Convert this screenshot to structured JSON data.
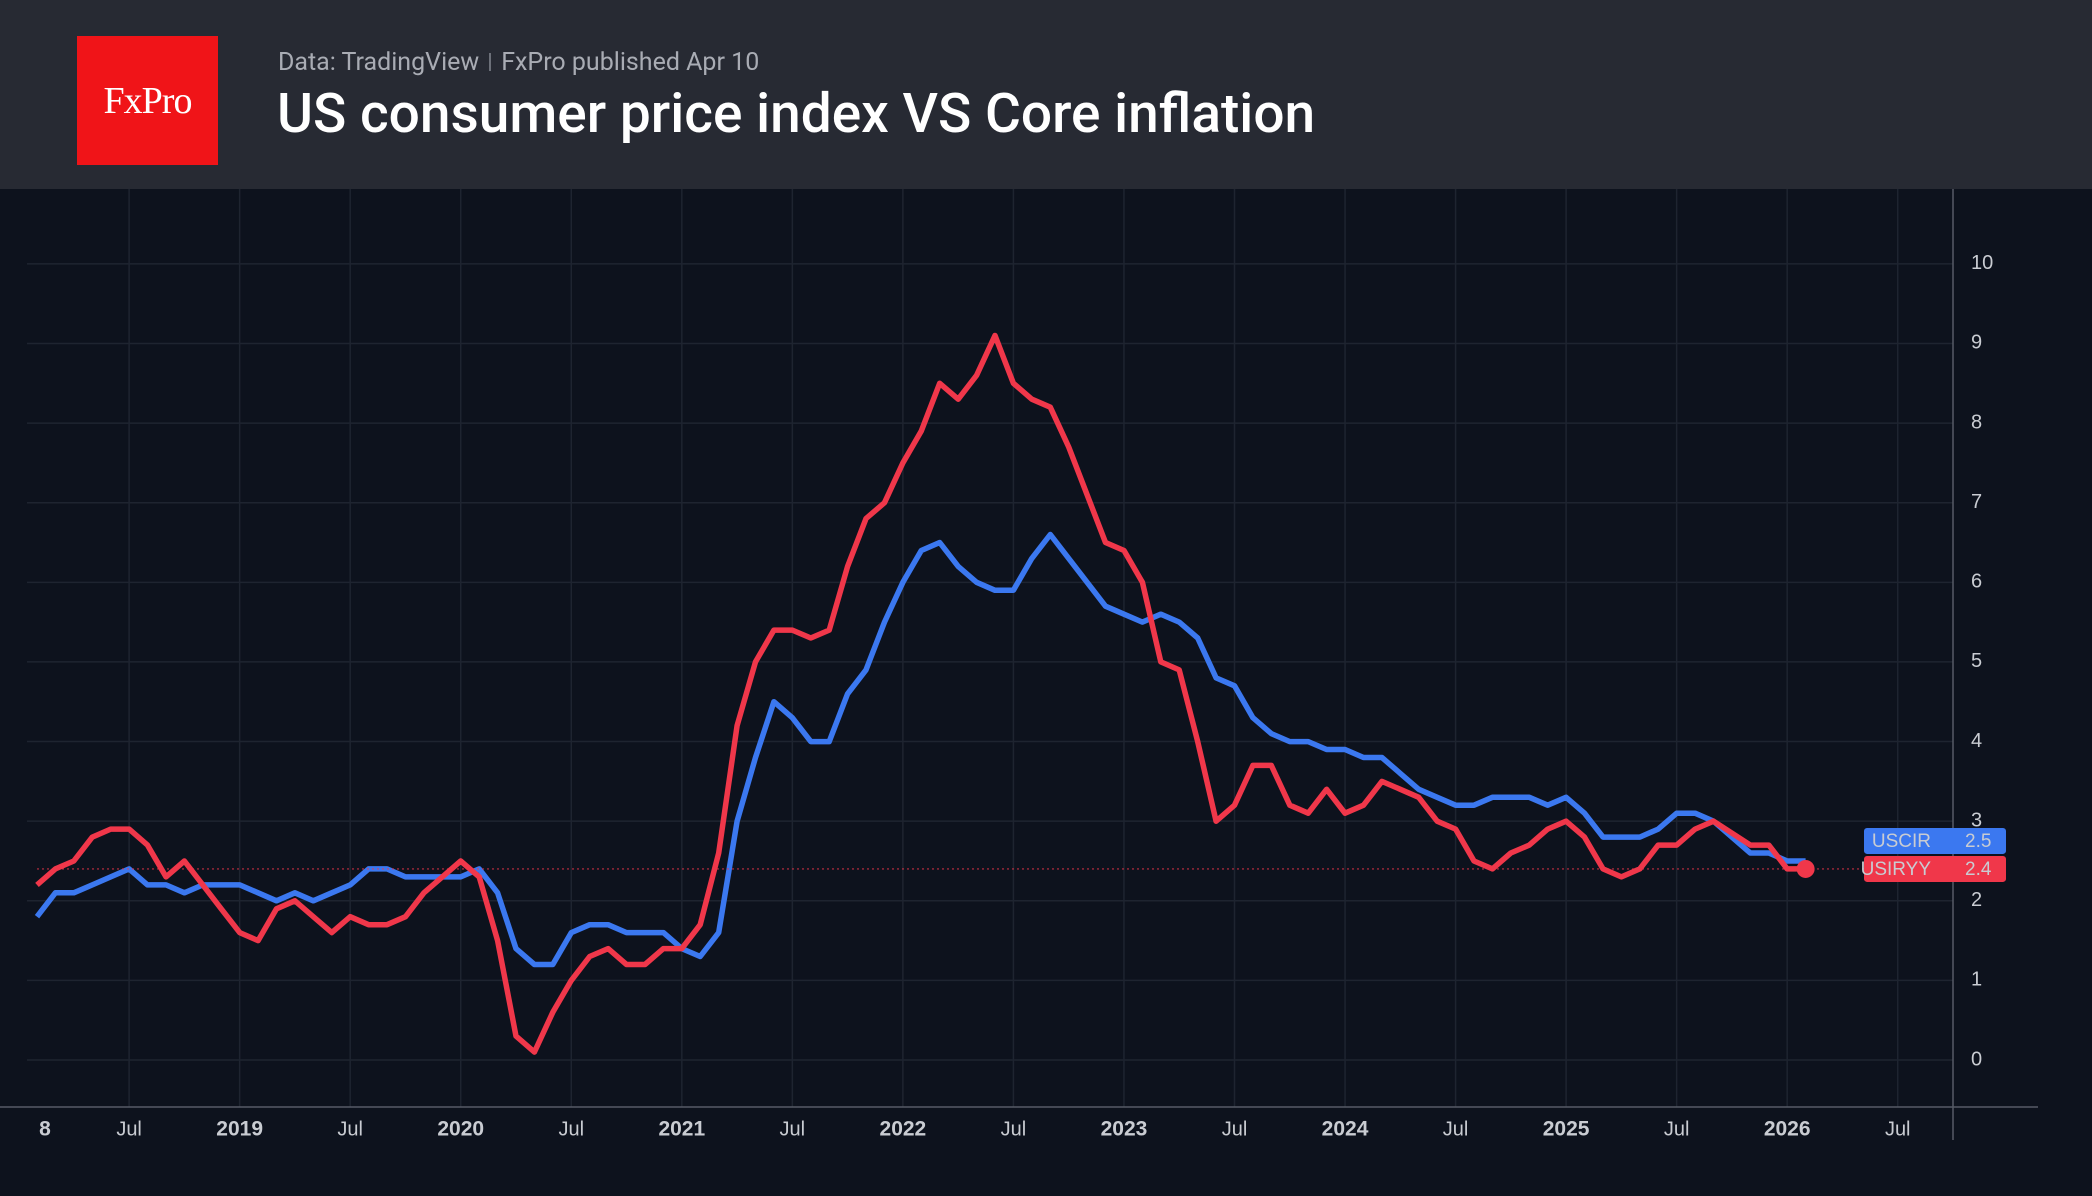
{
  "header": {
    "logo": "FxPro",
    "source": "Data: TradingView",
    "published": "FxPro published Apr 10"
  },
  "chart_data": {
    "type": "line",
    "title": "US consumer price index VS Core inflation",
    "x": [
      "2018-02",
      "2018-03",
      "2018-04",
      "2018-05",
      "2018-06",
      "2018-07",
      "2018-08",
      "2018-09",
      "2018-10",
      "2018-11",
      "2018-12",
      "2019-01",
      "2019-02",
      "2019-03",
      "2019-04",
      "2019-05",
      "2019-06",
      "2019-07",
      "2019-08",
      "2019-09",
      "2019-10",
      "2019-11",
      "2019-12",
      "2020-01",
      "2020-02",
      "2020-03",
      "2020-04",
      "2020-05",
      "2020-06",
      "2020-07",
      "2020-08",
      "2020-09",
      "2020-10",
      "2020-11",
      "2020-12",
      "2021-01",
      "2021-02",
      "2021-03",
      "2021-04",
      "2021-05",
      "2021-06",
      "2021-07",
      "2021-08",
      "2021-09",
      "2021-10",
      "2021-11",
      "2021-12",
      "2022-01",
      "2022-02",
      "2022-03",
      "2022-04",
      "2022-05",
      "2022-06",
      "2022-07",
      "2022-08",
      "2022-09",
      "2022-10",
      "2022-11",
      "2022-12",
      "2023-01",
      "2023-02",
      "2023-03",
      "2023-04",
      "2023-05",
      "2023-06",
      "2023-07",
      "2023-08",
      "2023-09",
      "2023-10",
      "2023-11",
      "2023-12",
      "2024-01",
      "2024-02",
      "2024-03",
      "2024-04",
      "2024-05",
      "2024-06",
      "2024-07",
      "2024-08",
      "2024-09",
      "2024-10",
      "2024-11",
      "2024-12",
      "2025-01",
      "2025-02",
      "2025-03",
      "2025-04",
      "2025-05",
      "2025-06",
      "2025-07",
      "2025-08",
      "2025-09",
      "2025-11",
      "2025-12",
      "2026-01",
      "2026-02"
    ],
    "series": [
      {
        "name": "USCIR",
        "color": "#3b78f0",
        "values": [
          1.8,
          2.1,
          2.1,
          2.2,
          2.3,
          2.4,
          2.2,
          2.2,
          2.1,
          2.2,
          2.2,
          2.2,
          2.1,
          2.0,
          2.1,
          2.0,
          2.1,
          2.2,
          2.4,
          2.4,
          2.3,
          2.3,
          2.3,
          2.3,
          2.4,
          2.1,
          1.4,
          1.2,
          1.2,
          1.6,
          1.7,
          1.7,
          1.6,
          1.6,
          1.6,
          1.4,
          1.3,
          1.6,
          3.0,
          3.8,
          4.5,
          4.3,
          4.0,
          4.0,
          4.6,
          4.9,
          5.5,
          6.0,
          6.4,
          6.5,
          6.2,
          6.0,
          5.9,
          5.9,
          6.3,
          6.6,
          6.3,
          6.0,
          5.7,
          5.6,
          5.5,
          5.6,
          5.5,
          5.3,
          4.8,
          4.7,
          4.3,
          4.1,
          4.0,
          4.0,
          3.9,
          3.9,
          3.8,
          3.8,
          3.6,
          3.4,
          3.3,
          3.2,
          3.2,
          3.3,
          3.3,
          3.3,
          3.2,
          3.3,
          3.1,
          2.8,
          2.8,
          2.8,
          2.9,
          3.1,
          3.1,
          3.0,
          2.6,
          2.6,
          2.5,
          2.5
        ]
      },
      {
        "name": "USIRYY",
        "color": "#f0374a",
        "values": [
          2.2,
          2.4,
          2.5,
          2.8,
          2.9,
          2.9,
          2.7,
          2.3,
          2.5,
          2.2,
          1.9,
          1.6,
          1.5,
          1.9,
          2.0,
          1.8,
          1.6,
          1.8,
          1.7,
          1.7,
          1.8,
          2.1,
          2.3,
          2.5,
          2.3,
          1.5,
          0.3,
          0.1,
          0.6,
          1.0,
          1.3,
          1.4,
          1.2,
          1.2,
          1.4,
          1.4,
          1.7,
          2.6,
          4.2,
          5.0,
          5.4,
          5.4,
          5.3,
          5.4,
          6.2,
          6.8,
          7.0,
          7.5,
          7.9,
          8.5,
          8.3,
          8.6,
          9.1,
          8.5,
          8.3,
          8.2,
          7.7,
          7.1,
          6.5,
          6.4,
          6.0,
          5.0,
          4.9,
          4.0,
          3.0,
          3.2,
          3.7,
          3.7,
          3.2,
          3.1,
          3.4,
          3.1,
          3.2,
          3.5,
          3.4,
          3.3,
          3.0,
          2.9,
          2.5,
          2.4,
          2.6,
          2.7,
          2.9,
          3.0,
          2.8,
          2.4,
          2.3,
          2.4,
          2.7,
          2.7,
          2.9,
          3.0,
          2.7,
          2.7,
          2.4,
          2.4
        ]
      }
    ],
    "xlim": [
      "2018-02",
      "2026-10"
    ],
    "xticks": [
      {
        "value": "2018-01",
        "label": "8"
      },
      {
        "value": "2018-07",
        "label": "Jul"
      },
      {
        "value": "2019-01",
        "label": "2019"
      },
      {
        "value": "2019-07",
        "label": "Jul"
      },
      {
        "value": "2020-01",
        "label": "2020"
      },
      {
        "value": "2020-07",
        "label": "Jul"
      },
      {
        "value": "2021-01",
        "label": "2021"
      },
      {
        "value": "2021-07",
        "label": "Jul"
      },
      {
        "value": "2022-01",
        "label": "2022"
      },
      {
        "value": "2022-07",
        "label": "Jul"
      },
      {
        "value": "2023-01",
        "label": "2023"
      },
      {
        "value": "2023-07",
        "label": "Jul"
      },
      {
        "value": "2024-01",
        "label": "2024"
      },
      {
        "value": "2024-07",
        "label": "Jul"
      },
      {
        "value": "2025-01",
        "label": "2025"
      },
      {
        "value": "2025-07",
        "label": "Jul"
      },
      {
        "value": "2026-01",
        "label": "2026"
      },
      {
        "value": "2026-07",
        "label": "Jul"
      }
    ],
    "ylim": [
      -0.59,
      10.94
    ],
    "yticks": [
      0,
      1,
      2,
      3,
      4,
      5,
      6,
      7,
      8,
      9,
      10
    ],
    "grid": true
  }
}
